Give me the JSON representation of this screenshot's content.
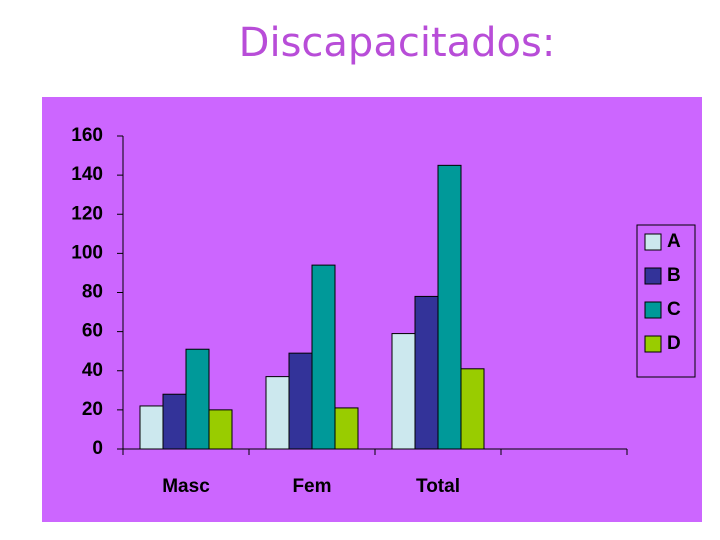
{
  "chart_data": {
    "type": "bar",
    "title": "Discapacitados:",
    "categories": [
      "Masc",
      "Fem",
      "Total",
      null
    ],
    "series": [
      {
        "name": "A",
        "color": "#cce8ee",
        "values": [
          22,
          37,
          59,
          null
        ]
      },
      {
        "name": "B",
        "color": "#333399",
        "values": [
          28,
          49,
          78,
          null
        ]
      },
      {
        "name": "C",
        "color": "#009999",
        "values": [
          51,
          94,
          145,
          null
        ]
      },
      {
        "name": "D",
        "color": "#99cc00",
        "values": [
          20,
          21,
          41,
          null
        ]
      }
    ],
    "ylim": [
      0,
      160
    ],
    "yticks": [
      0,
      20,
      40,
      60,
      80,
      100,
      120,
      140,
      160
    ],
    "grid": false,
    "legend": "right"
  }
}
